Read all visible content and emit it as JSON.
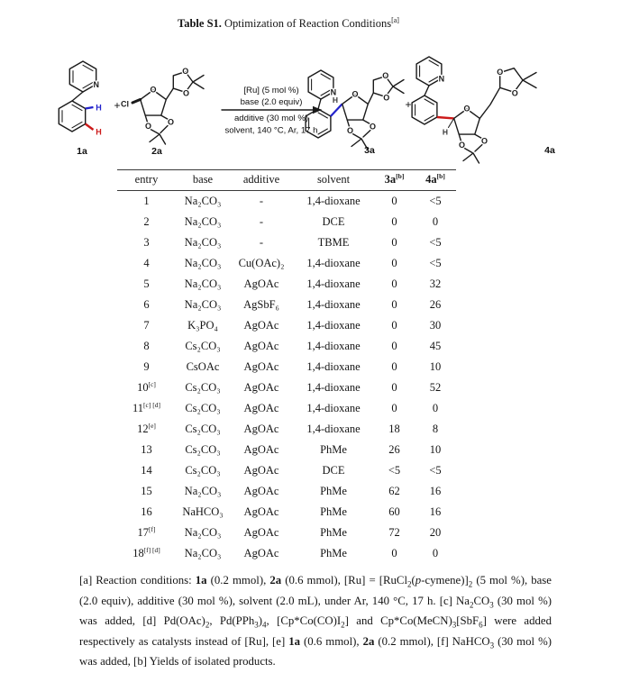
{
  "title": {
    "label_bold": "Table S1.",
    "label_rest": " Optimization of Reaction Conditions",
    "footnote_mark": "[a]"
  },
  "scheme": {
    "atoms": {
      "N": "N",
      "O": "O",
      "Cl": "Cl",
      "H": "H"
    },
    "plus": "+",
    "labels": {
      "reactant1": "1a",
      "reactant2": "2a",
      "product1": "3a",
      "product2": "4a"
    },
    "conditions_above": [
      "[Ru] (5 mol %)",
      "base (2.0 equiv)"
    ],
    "conditions_below": [
      "additive (30 mol %)",
      "solvent, 140 °C, Ar, 17 h"
    ],
    "colors": {
      "ortho_highlight": "#2222cc",
      "meta_highlight": "#cc1a1a",
      "bond": "#1a1a1a"
    }
  },
  "table": {
    "headers": [
      {
        "label": "entry",
        "sup": "",
        "bold": false
      },
      {
        "label": "base",
        "sup": "",
        "bold": false
      },
      {
        "label": "additive",
        "sup": "",
        "bold": false
      },
      {
        "label": "solvent",
        "sup": "",
        "bold": false
      },
      {
        "label": "3a",
        "sup": "[b]",
        "bold": true
      },
      {
        "label": "4a",
        "sup": "[b]",
        "bold": true
      }
    ],
    "rows": [
      {
        "entry": "1",
        "entry_sup": "",
        "base": "Na₂CO₃",
        "additive": "-",
        "solvent": "1,4-dioxane",
        "yield_3a": "0",
        "yield_4a": "<5"
      },
      {
        "entry": "2",
        "entry_sup": "",
        "base": "Na₂CO₃",
        "additive": "-",
        "solvent": "DCE",
        "yield_3a": "0",
        "yield_4a": "0"
      },
      {
        "entry": "3",
        "entry_sup": "",
        "base": "Na₂CO₃",
        "additive": "-",
        "solvent": "TBME",
        "yield_3a": "0",
        "yield_4a": "<5"
      },
      {
        "entry": "4",
        "entry_sup": "",
        "base": "Na₂CO₃",
        "additive": "Cu(OAc)₂",
        "solvent": "1,4-dioxane",
        "yield_3a": "0",
        "yield_4a": "<5"
      },
      {
        "entry": "5",
        "entry_sup": "",
        "base": "Na₂CO₃",
        "additive": "AgOAc",
        "solvent": "1,4-dioxane",
        "yield_3a": "0",
        "yield_4a": "32"
      },
      {
        "entry": "6",
        "entry_sup": "",
        "base": "Na₂CO₃",
        "additive": "AgSbF₆",
        "solvent": "1,4-dioxane",
        "yield_3a": "0",
        "yield_4a": "26"
      },
      {
        "entry": "7",
        "entry_sup": "",
        "base": "K₃PO₄",
        "additive": "AgOAc",
        "solvent": "1,4-dioxane",
        "yield_3a": "0",
        "yield_4a": "30"
      },
      {
        "entry": "8",
        "entry_sup": "",
        "base": "Cs₂CO₃",
        "additive": "AgOAc",
        "solvent": "1,4-dioxane",
        "yield_3a": "0",
        "yield_4a": "45"
      },
      {
        "entry": "9",
        "entry_sup": "",
        "base": "CsOAc",
        "additive": "AgOAc",
        "solvent": "1,4-dioxane",
        "yield_3a": "0",
        "yield_4a": "10"
      },
      {
        "entry": "10",
        "entry_sup": "[c]",
        "base": "Cs₂CO₃",
        "additive": "AgOAc",
        "solvent": "1,4-dioxane",
        "yield_3a": "0",
        "yield_4a": "52"
      },
      {
        "entry": "11",
        "entry_sup": "[c] [d]",
        "base": "Cs₂CO₃",
        "additive": "AgOAc",
        "solvent": "1,4-dioxane",
        "yield_3a": "0",
        "yield_4a": "0"
      },
      {
        "entry": "12",
        "entry_sup": "[e]",
        "base": "Cs₂CO₃",
        "additive": "AgOAc",
        "solvent": "1,4-dioxane",
        "yield_3a": "18",
        "yield_4a": "8"
      },
      {
        "entry": "13",
        "entry_sup": "",
        "base": "Cs₂CO₃",
        "additive": "AgOAc",
        "solvent": "PhMe",
        "yield_3a": "26",
        "yield_4a": "10"
      },
      {
        "entry": "14",
        "entry_sup": "",
        "base": "Cs₂CO₃",
        "additive": "AgOAc",
        "solvent": "DCE",
        "yield_3a": "<5",
        "yield_4a": "<5"
      },
      {
        "entry": "15",
        "entry_sup": "",
        "base": "Na₂CO₃",
        "additive": "AgOAc",
        "solvent": "PhMe",
        "yield_3a": "62",
        "yield_4a": "16"
      },
      {
        "entry": "16",
        "entry_sup": "",
        "base": "NaHCO₃",
        "additive": "AgOAc",
        "solvent": "PhMe",
        "yield_3a": "60",
        "yield_4a": "16"
      },
      {
        "entry": "17",
        "entry_sup": "[f]",
        "base": "Na₂CO₃",
        "additive": "AgOAc",
        "solvent": "PhMe",
        "yield_3a": "72",
        "yield_4a": "20"
      },
      {
        "entry": "18",
        "entry_sup": "[f] [d]",
        "base": "Na₂CO₃",
        "additive": "AgOAc",
        "solvent": "PhMe",
        "yield_3a": "0",
        "yield_4a": "0"
      }
    ]
  },
  "footnote": {
    "segments": [
      {
        "t": "[a] Reaction conditions: "
      },
      {
        "t": "1a",
        "b": true
      },
      {
        "t": " (0.2 mmol), "
      },
      {
        "t": "2a",
        "b": true
      },
      {
        "t": " (0.6 mmol), [Ru] = [RuCl"
      },
      {
        "t": "2",
        "sub": true
      },
      {
        "t": "("
      },
      {
        "t": "p",
        "i": true
      },
      {
        "t": "-cymene)]"
      },
      {
        "t": "2",
        "sub": true
      },
      {
        "t": " (5 mol %), base (2.0 equiv), additive (30 mol %), solvent (2.0 mL), under Ar, 140 °C, 17 h. [c] Na"
      },
      {
        "t": "2",
        "sub": true
      },
      {
        "t": "CO"
      },
      {
        "t": "3",
        "sub": true
      },
      {
        "t": " (30 mol %) was added, [d] Pd(OAc)"
      },
      {
        "t": "2",
        "sub": true
      },
      {
        "t": ", Pd(PPh"
      },
      {
        "t": "3",
        "sub": true
      },
      {
        "t": ")"
      },
      {
        "t": "4",
        "sub": true
      },
      {
        "t": ", [Cp*Co(CO)I"
      },
      {
        "t": "2",
        "sub": true
      },
      {
        "t": "] and Cp*Co(MeCN)"
      },
      {
        "t": "3",
        "sub": true
      },
      {
        "t": "[SbF"
      },
      {
        "t": "6",
        "sub": true
      },
      {
        "t": "] were added respectively as catalysts instead of [Ru], [e] "
      },
      {
        "t": "1a",
        "b": true
      },
      {
        "t": " (0.6 mmol), "
      },
      {
        "t": "2a",
        "b": true
      },
      {
        "t": " (0.2 mmol), [f] NaHCO"
      },
      {
        "t": "3",
        "sub": true
      },
      {
        "t": " (30 mol %) was added, [b] Yields of isolated products."
      }
    ]
  }
}
